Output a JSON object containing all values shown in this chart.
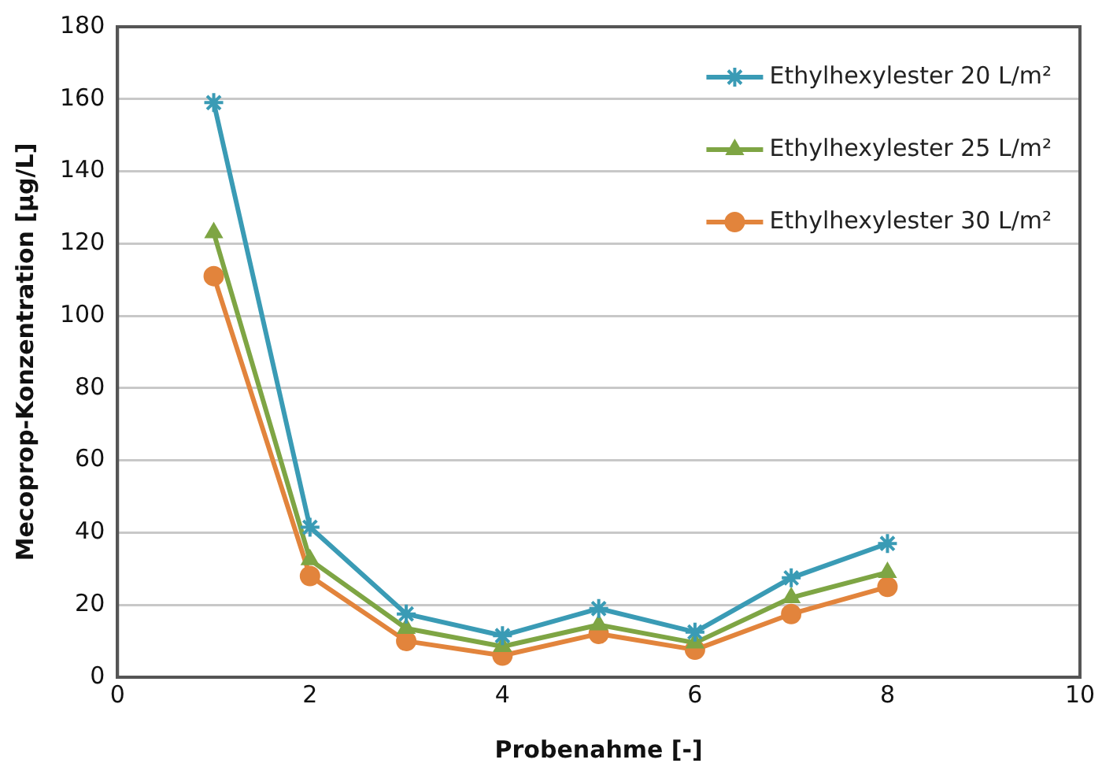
{
  "chart_data": {
    "type": "line",
    "xlabel": "Probenahme [-]",
    "ylabel": "Mecoprop-Konzentration [µg/L]",
    "x": [
      1,
      2,
      3,
      4,
      5,
      6,
      7,
      8
    ],
    "xlim": [
      0,
      10
    ],
    "xticks": [
      0,
      2,
      4,
      6,
      8,
      10
    ],
    "ylim": [
      0,
      180
    ],
    "yticks": [
      0,
      20,
      40,
      60,
      80,
      100,
      120,
      140,
      160,
      180
    ],
    "grid": "y",
    "legend": "top right",
    "series": [
      {
        "name": "Ethylhexylester 20 L/m²",
        "color": "#3a9bb5",
        "marker": "cross",
        "values": [
          159,
          41.5,
          17.5,
          11.5,
          19,
          12.5,
          27.5,
          37
        ]
      },
      {
        "name": "Ethylhexylester 25 L/m²",
        "color": "#7ea544",
        "marker": "triangle",
        "values": [
          123,
          32.5,
          13.5,
          8.5,
          14.5,
          9.5,
          22,
          29
        ]
      },
      {
        "name": "Ethylhexylester 30 L/m²",
        "color": "#e2843c",
        "marker": "circle",
        "values": [
          111,
          28,
          10,
          6,
          12,
          7.6,
          17.5,
          25
        ]
      }
    ]
  }
}
